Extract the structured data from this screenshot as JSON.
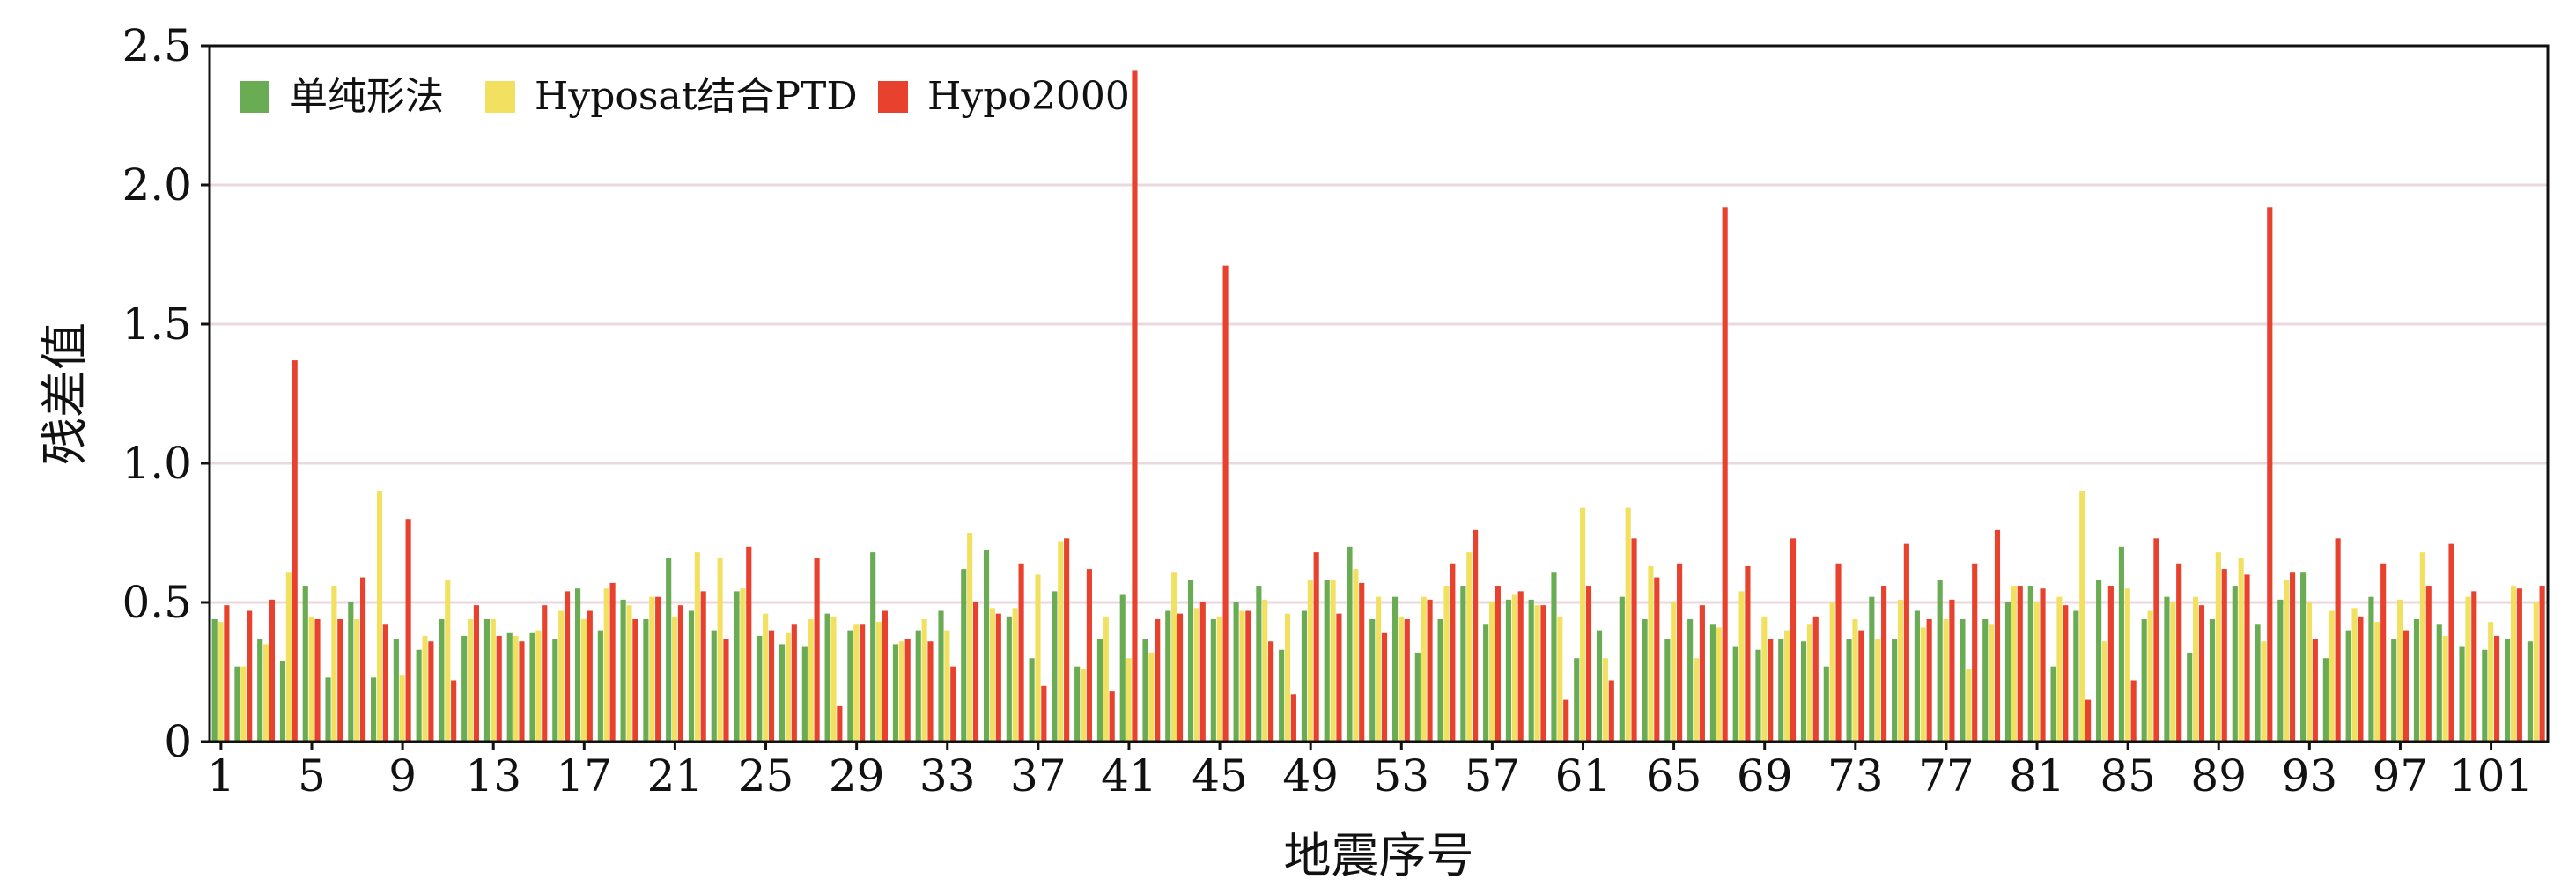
{
  "chart_data": {
    "type": "bar",
    "title": "",
    "xlabel": "地震序号",
    "ylabel": "残差值",
    "ylim": [
      0,
      2.5
    ],
    "yticks": [
      "0",
      "0.5",
      "1.0",
      "1.5",
      "2.0",
      "2.5"
    ],
    "xticks": [
      "1",
      "5",
      "9",
      "13",
      "17",
      "21",
      "25",
      "29",
      "33",
      "37",
      "41",
      "45",
      "49",
      "53",
      "57",
      "61",
      "65",
      "69",
      "73",
      "77",
      "81",
      "85",
      "89",
      "93",
      "97",
      "101"
    ],
    "grid": "horizontal",
    "legend_position": "top-left",
    "series": [
      {
        "name": "单纯形法",
        "color": "#6aac53",
        "values": [
          0.44,
          0.27,
          0.37,
          0.29,
          0.56,
          0.23,
          0.5,
          0.23,
          0.37,
          0.33,
          0.44,
          0.38,
          0.44,
          0.39,
          0.39,
          0.37,
          0.55,
          0.4,
          0.51,
          0.44,
          0.66,
          0.47,
          0.4,
          0.54,
          0.38,
          0.35,
          0.34,
          0.46,
          0.4,
          0.68,
          0.35,
          0.4,
          0.47,
          0.62,
          0.69,
          0.45,
          0.3,
          0.54,
          0.27,
          0.37,
          0.53,
          0.37,
          0.47,
          0.58,
          0.44,
          0.5,
          0.56,
          0.33,
          0.47,
          0.58,
          0.7,
          0.44,
          0.52,
          0.32,
          0.44,
          0.56,
          0.42,
          0.51,
          0.51,
          0.61,
          0.3,
          0.4,
          0.52,
          0.44,
          0.37,
          0.44,
          0.42,
          0.34,
          0.33,
          0.37,
          0.36,
          0.27,
          0.37,
          0.52,
          0.37,
          0.47,
          0.58,
          0.44,
          0.44,
          0.5,
          0.56,
          0.27,
          0.47,
          0.58,
          0.7,
          0.44,
          0.52,
          0.32,
          0.44,
          0.56,
          0.42,
          0.51,
          0.61,
          0.3,
          0.4,
          0.52,
          0.37,
          0.44,
          0.42,
          0.34,
          0.33,
          0.37,
          0.36
        ]
      },
      {
        "name": "Hyposat结合PTD",
        "color": "#f2e160",
        "values": [
          0.43,
          0.27,
          0.35,
          0.61,
          0.45,
          0.56,
          0.44,
          0.9,
          0.24,
          0.38,
          0.58,
          0.44,
          0.44,
          0.38,
          0.4,
          0.47,
          0.44,
          0.55,
          0.49,
          0.52,
          0.45,
          0.68,
          0.66,
          0.55,
          0.46,
          0.39,
          0.44,
          0.45,
          0.42,
          0.43,
          0.36,
          0.44,
          0.4,
          0.75,
          0.48,
          0.48,
          0.6,
          0.72,
          0.26,
          0.45,
          0.3,
          0.32,
          0.61,
          0.48,
          0.45,
          0.47,
          0.51,
          0.46,
          0.58,
          0.58,
          0.62,
          0.52,
          0.45,
          0.52,
          0.56,
          0.68,
          0.5,
          0.53,
          0.49,
          0.45,
          0.84,
          0.3,
          0.84,
          0.63,
          0.5,
          0.3,
          0.41,
          0.54,
          0.45,
          0.4,
          0.42,
          0.5,
          0.44,
          0.37,
          0.51,
          0.41,
          0.44,
          0.26,
          0.42,
          0.56,
          0.5,
          0.52,
          0.9,
          0.36,
          0.55,
          0.47,
          0.5,
          0.52,
          0.68,
          0.66,
          0.36,
          0.58,
          0.5,
          0.47,
          0.48,
          0.43,
          0.51,
          0.68,
          0.38,
          0.52,
          0.43,
          0.56,
          0.5
        ]
      },
      {
        "name": "Hypo2000",
        "color": "#e8412e",
        "values": [
          0.49,
          0.47,
          0.51,
          1.37,
          0.44,
          0.44,
          0.59,
          0.42,
          0.8,
          0.36,
          0.22,
          0.49,
          0.38,
          0.36,
          0.49,
          0.54,
          0.47,
          0.57,
          0.44,
          0.52,
          0.49,
          0.54,
          0.37,
          0.7,
          0.4,
          0.42,
          0.66,
          0.13,
          0.42,
          0.47,
          0.37,
          0.36,
          0.27,
          0.5,
          0.46,
          0.64,
          0.2,
          0.73,
          0.62,
          0.18,
          2.41,
          0.44,
          0.46,
          0.5,
          1.71,
          0.47,
          0.36,
          0.17,
          0.68,
          0.46,
          0.57,
          0.39,
          0.44,
          0.51,
          0.64,
          0.76,
          0.56,
          0.54,
          0.49,
          0.15,
          0.56,
          0.22,
          0.73,
          0.59,
          0.64,
          0.49,
          1.92,
          0.63,
          0.37,
          0.73,
          0.45,
          0.64,
          0.4,
          0.56,
          0.71,
          0.44,
          0.51,
          0.64,
          0.76,
          0.56,
          0.55,
          0.49,
          0.15,
          0.56,
          0.22,
          0.73,
          0.64,
          0.49,
          0.62,
          0.6,
          1.92,
          0.61,
          0.37,
          0.73,
          0.45,
          0.64,
          0.4,
          0.56,
          0.71,
          0.54,
          0.38,
          0.55,
          0.56
        ]
      }
    ]
  }
}
